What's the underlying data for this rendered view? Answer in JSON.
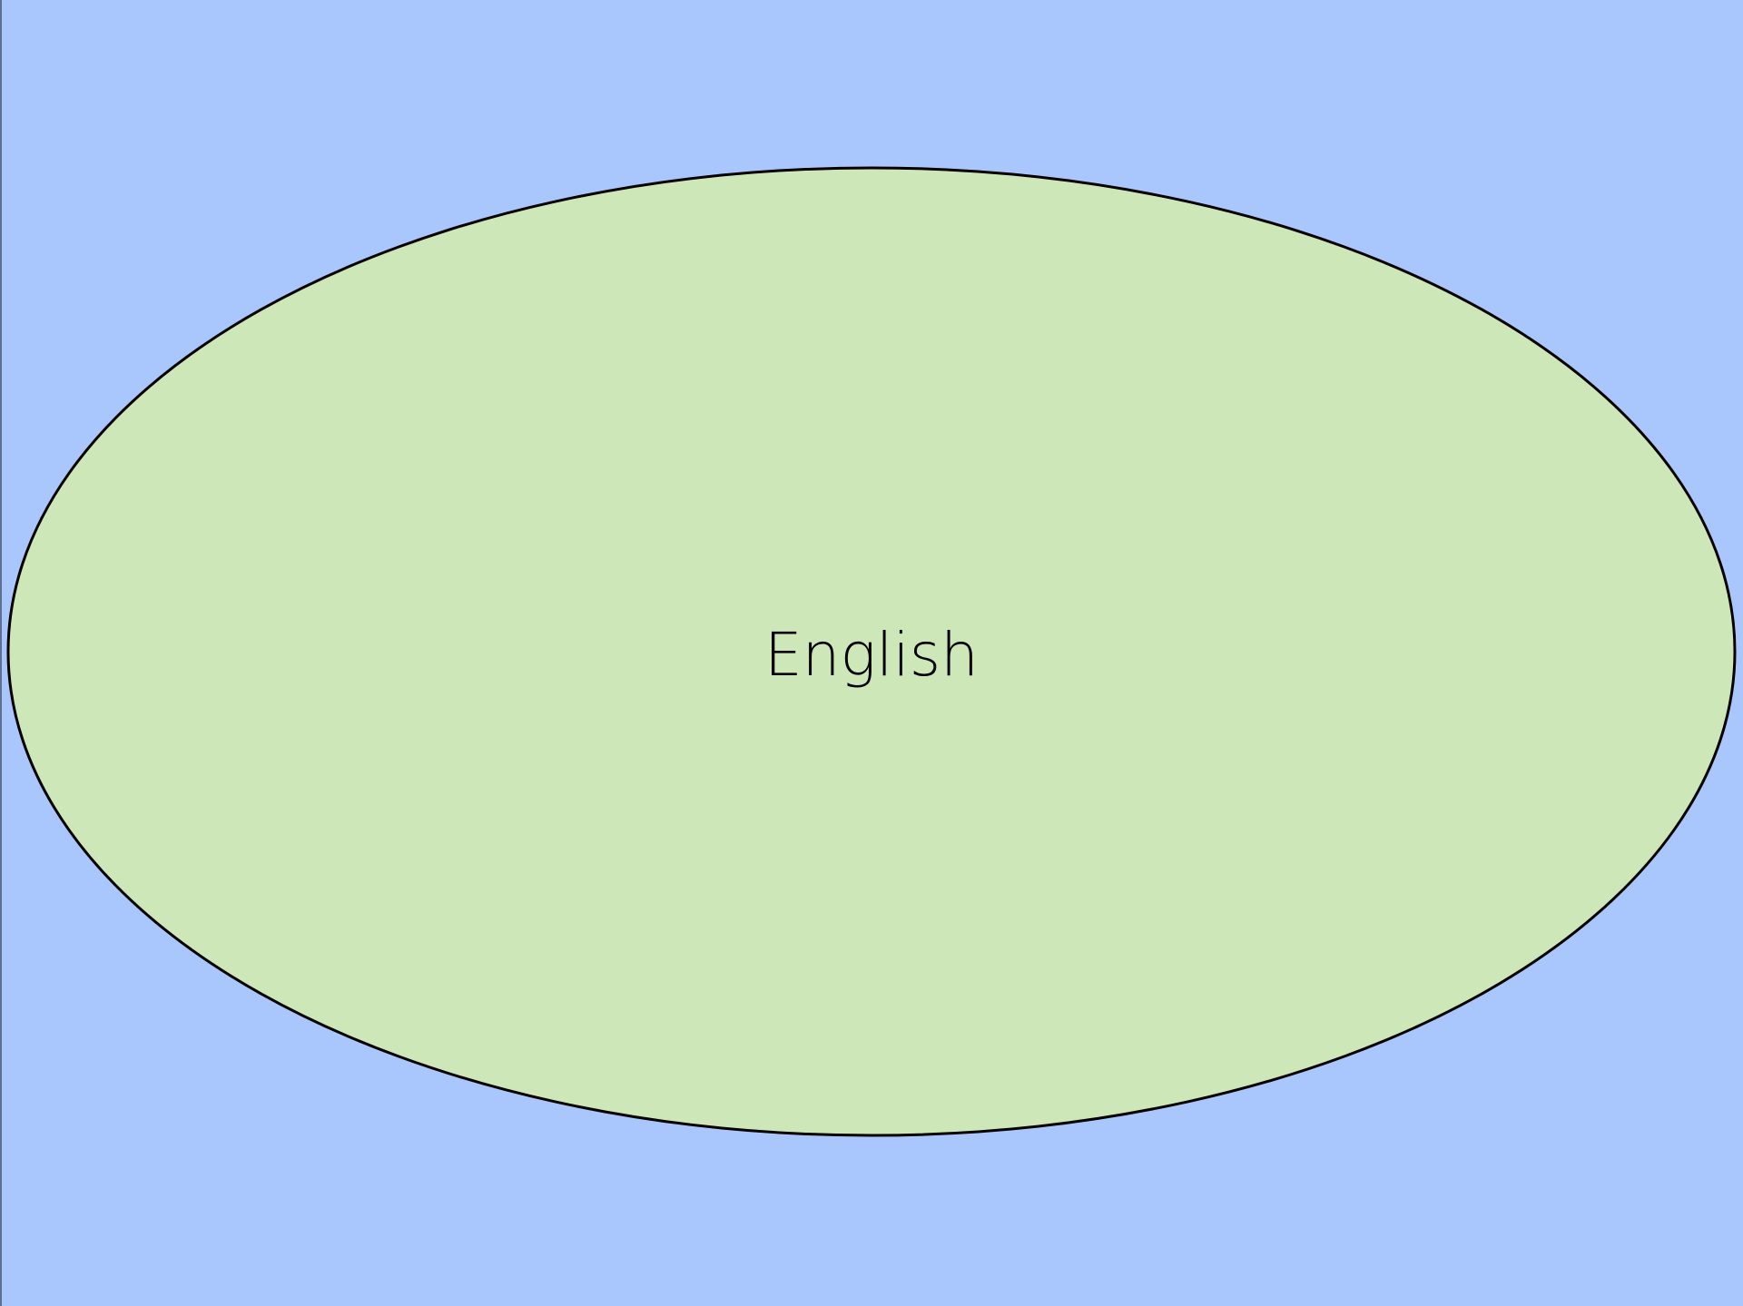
{
  "diagram": {
    "background_color": "#a9c6fd",
    "ellipse": {
      "label": "English",
      "fill_color": "#cee7b9",
      "stroke_color": "#000000"
    }
  }
}
